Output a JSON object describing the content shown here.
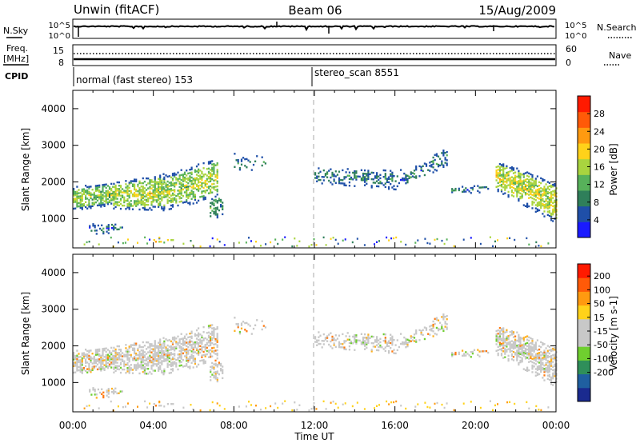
{
  "header": {
    "title_left": "Unwin (fitACF)",
    "title_center": "Beam 06",
    "title_right": "15/Aug/2009"
  },
  "strip1": {
    "left_label": "N.Sky",
    "right_label": "N.Search",
    "ticks_left": [
      "10^5",
      "10^0"
    ],
    "ticks_right": [
      "10^5",
      "10^0"
    ]
  },
  "strip2": {
    "left_label_1": "Freq.",
    "left_label_2": "[MHz]",
    "right_label": "Nave",
    "ticks_left": [
      "15",
      "8"
    ],
    "ticks_right": [
      "60",
      "0"
    ]
  },
  "cpid": {
    "label": "CPID",
    "segments": [
      {
        "text": "normal (fast stereo) 153",
        "start_hour": 0
      },
      {
        "text": "stereo_scan 8551",
        "start_hour": 11.9
      }
    ]
  },
  "colors": {
    "power": [
      "#1a1aff",
      "#1f4fa8",
      "#2f7f5a",
      "#57b15a",
      "#a9d43f",
      "#ffd21a",
      "#ff9a10",
      "#ff5a08",
      "#ff1a00"
    ],
    "velocity": [
      "#1a2a8f",
      "#1f5fa0",
      "#2f8f5a",
      "#6fcf2f",
      "#c8c8c8",
      "#c8c8c8",
      "#ffd21a",
      "#ff9a10",
      "#ff5a08",
      "#ff1a00"
    ]
  },
  "chart_data": [
    {
      "type": "heatmap",
      "name": "power",
      "xlabel": "",
      "ylabel": "Slant Range [km]",
      "xlim": [
        0,
        24
      ],
      "ylim": [
        200,
        4500
      ],
      "y_ticks": [
        1000,
        2000,
        3000,
        4000
      ],
      "colorbar": {
        "label": "Power [dB]",
        "range": [
          0,
          32
        ],
        "ticks": [
          "4",
          "8",
          "12",
          "16",
          "20",
          "24",
          "28"
        ]
      }
    },
    {
      "type": "heatmap",
      "name": "velocity",
      "xlabel": "Time UT",
      "ylabel": "Slant Range [km]",
      "xlim": [
        0,
        24
      ],
      "ylim": [
        200,
        4500
      ],
      "x_ticks": [
        "00:00",
        "04:00",
        "08:00",
        "12:00",
        "16:00",
        "20:00",
        "00:00"
      ],
      "y_ticks": [
        1000,
        2000,
        3000,
        4000
      ],
      "colorbar": {
        "label": "Velocity [m s-1]",
        "range": [
          -250,
          250
        ],
        "ticks": [
          "200",
          "100",
          "50",
          "15",
          "-15",
          "-50",
          "-100",
          "-200"
        ]
      }
    }
  ]
}
